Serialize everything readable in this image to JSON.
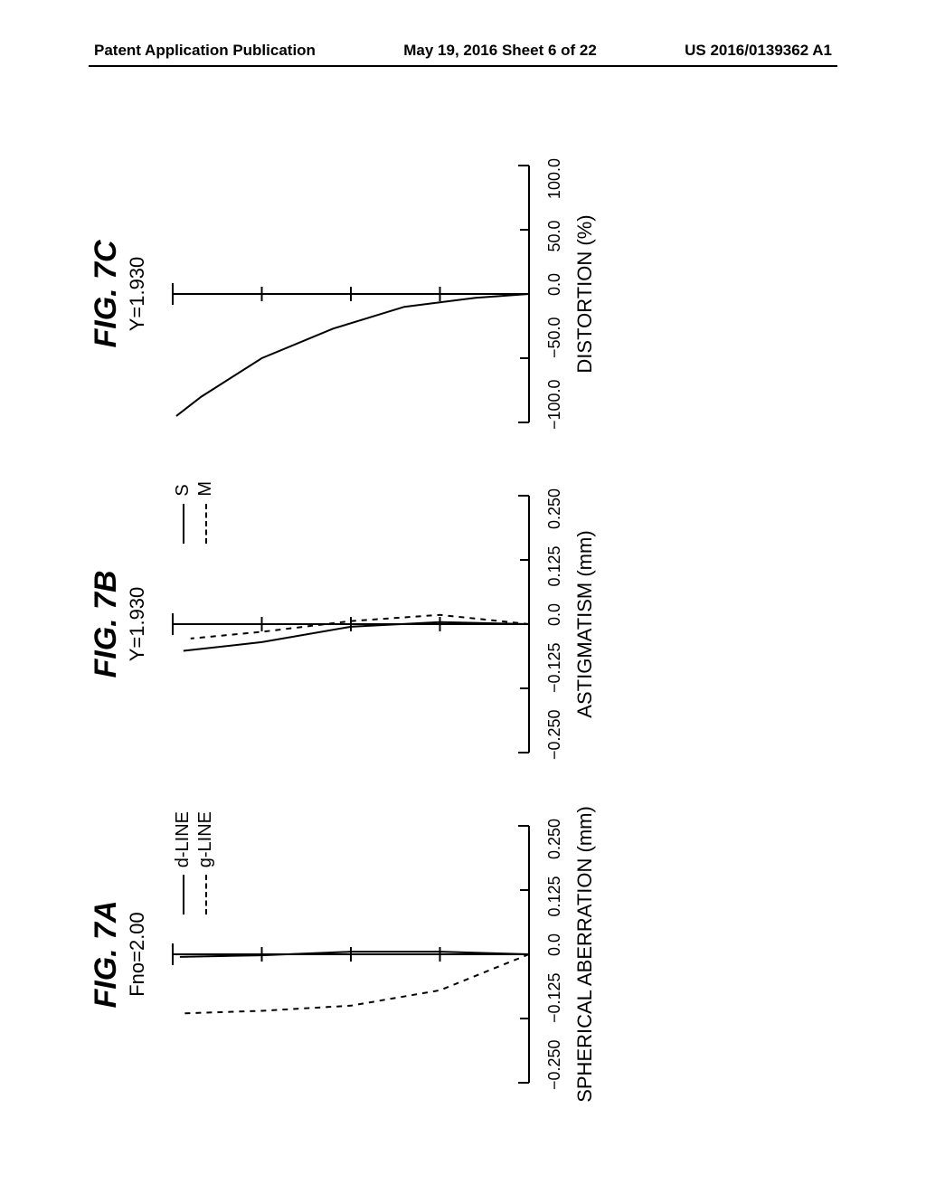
{
  "header": {
    "left": "Patent Application Publication",
    "center": "May 19, 2016  Sheet 6 of 22",
    "right": "US 2016/0139362 A1"
  },
  "figure": {
    "rotation_deg": -90,
    "panel_a": {
      "title": "FIG. 7A",
      "subtitle": "Fno=2.00",
      "axis_label": "SPHERICAL ABERRATION (mm)",
      "xlim": [
        -0.25,
        0.25
      ],
      "xticks": [
        "−0.250",
        "−0.125",
        "0.0",
        "0.125",
        "0.250"
      ],
      "y_range": [
        0,
        1
      ],
      "legend": [
        {
          "style": "solid",
          "label": "d-LINE"
        },
        {
          "style": "dashed",
          "label": "g-LINE"
        }
      ],
      "series": {
        "d_line": {
          "color": "#000000",
          "width": 2,
          "dash": "none",
          "points": [
            [
              0.0,
              0.0
            ],
            [
              0.005,
              0.25
            ],
            [
              0.005,
              0.5
            ],
            [
              -0.002,
              0.75
            ],
            [
              -0.005,
              0.98
            ]
          ]
        },
        "g_line": {
          "color": "#000000",
          "width": 2,
          "dash": "6,6",
          "points": [
            [
              0.0,
              0.0
            ],
            [
              -0.07,
              0.25
            ],
            [
              -0.1,
              0.5
            ],
            [
              -0.11,
              0.75
            ],
            [
              -0.115,
              0.97
            ]
          ]
        }
      }
    },
    "panel_b": {
      "title": "FIG. 7B",
      "subtitle": "Y=1.930",
      "axis_label": "ASTIGMATISM (mm)",
      "xlim": [
        -0.25,
        0.25
      ],
      "xticks": [
        "−0.250",
        "−0.125",
        "0.0",
        "0.125",
        "0.250"
      ],
      "y_range": [
        0,
        1
      ],
      "legend": [
        {
          "style": "solid",
          "label": "S"
        },
        {
          "style": "dashed",
          "label": "M"
        }
      ],
      "series": {
        "S": {
          "color": "#000000",
          "width": 2,
          "dash": "none",
          "points": [
            [
              0.0,
              0.0
            ],
            [
              0.004,
              0.25
            ],
            [
              -0.005,
              0.5
            ],
            [
              -0.035,
              0.75
            ],
            [
              -0.052,
              0.97
            ]
          ]
        },
        "M": {
          "color": "#000000",
          "width": 2,
          "dash": "6,6",
          "points": [
            [
              0.0,
              0.0
            ],
            [
              0.018,
              0.25
            ],
            [
              0.006,
              0.5
            ],
            [
              -0.015,
              0.75
            ],
            [
              -0.028,
              0.95
            ]
          ]
        }
      }
    },
    "panel_c": {
      "title": "FIG. 7C",
      "subtitle": "Y=1.930",
      "axis_label": "DISTORTION (%)",
      "xlim": [
        -100.0,
        100.0
      ],
      "xticks": [
        "−100.0",
        "−50.0",
        "0.0",
        "50.0",
        "100.0"
      ],
      "y_range": [
        0,
        1
      ],
      "series": {
        "dist": {
          "color": "#000000",
          "width": 2,
          "dash": "none",
          "points": [
            [
              0.0,
              0.0
            ],
            [
              -3,
              0.15
            ],
            [
              -10,
              0.35
            ],
            [
              -27,
              0.55
            ],
            [
              -50,
              0.75
            ],
            [
              -80,
              0.92
            ],
            [
              -95,
              0.99
            ]
          ]
        }
      }
    },
    "plot_style": {
      "bg": "#ffffff",
      "axis_color": "#000000",
      "axis_width": 2,
      "tick_len": 10,
      "font_size_ticks": 18,
      "font_size_axislabel": 22,
      "font_size_title": 34,
      "font_size_sub": 22
    }
  }
}
